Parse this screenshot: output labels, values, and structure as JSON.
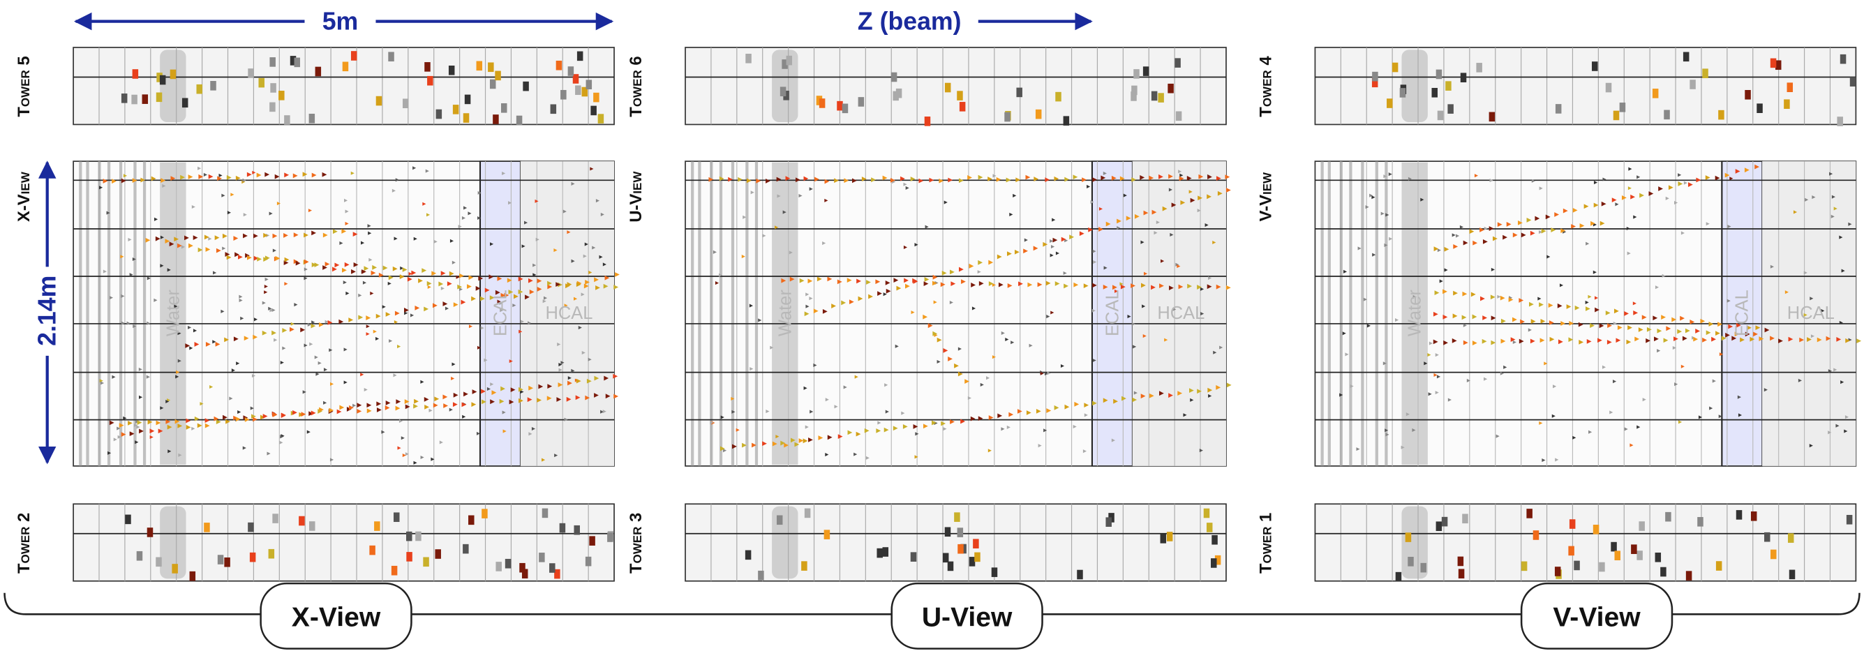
{
  "annotations": {
    "width_label": "5m",
    "beam_label": "Z (beam)",
    "height_label": "2.14m"
  },
  "views": [
    {
      "side_label": "X-View",
      "top_tower": "Tower 5",
      "bottom_tower": "Tower 2",
      "regions": {
        "water": "Water",
        "ecal": "ECAL",
        "hcal": "HCAL"
      },
      "footer_label": "X-View"
    },
    {
      "side_label": "U-View",
      "top_tower": "Tower 6",
      "bottom_tower": "Tower 3",
      "regions": {
        "water": "Water",
        "ecal": "ECAL",
        "hcal": "HCAL"
      },
      "footer_label": "U-View"
    },
    {
      "side_label": "V-View",
      "top_tower": "Tower 4",
      "bottom_tower": "Tower 1",
      "regions": {
        "water": "Water",
        "ecal": "ECAL",
        "hcal": "HCAL"
      },
      "footer_label": "V-View"
    }
  ]
}
